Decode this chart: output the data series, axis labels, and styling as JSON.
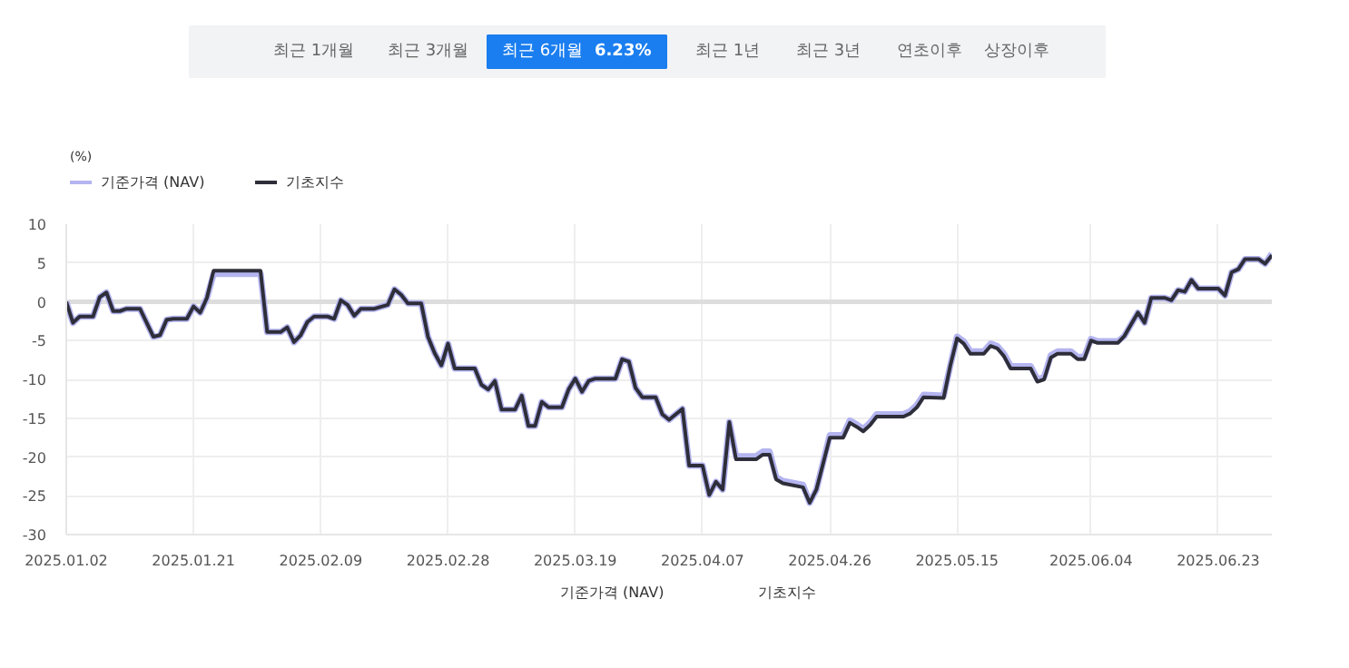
{
  "chart_data": {
    "type": "line",
    "annotations": [
      "최근 1개월",
      "최근 3개월",
      "최근 6개월",
      "6.23%",
      "최근 1년",
      "최근 3년",
      "연초이후",
      "상장이후"
    ],
    "ylabel": "(%)",
    "x": [
      "2025-01-02",
      "2025-01-03",
      "2025-01-04",
      "2025-01-06",
      "2025-01-07",
      "2025-01-08",
      "2025-01-09",
      "2025-01-10",
      "2025-01-11",
      "2025-01-13",
      "2025-01-15",
      "2025-01-16",
      "2025-01-17",
      "2025-01-18",
      "2025-01-20",
      "2025-01-21",
      "2025-01-22",
      "2025-01-23",
      "2025-01-24",
      "2025-01-31",
      "2025-02-01",
      "2025-02-03",
      "2025-02-04",
      "2025-02-05",
      "2025-02-06",
      "2025-02-07",
      "2025-02-08",
      "2025-02-10",
      "2025-02-11",
      "2025-02-12",
      "2025-02-13",
      "2025-02-14",
      "2025-02-15",
      "2025-02-17",
      "2025-02-19",
      "2025-02-20",
      "2025-02-21",
      "2025-02-22",
      "2025-02-24",
      "2025-02-25",
      "2025-02-26",
      "2025-02-27",
      "2025-02-28",
      "2025-03-01",
      "2025-03-04",
      "2025-03-05",
      "2025-03-06",
      "2025-03-07",
      "2025-03-08",
      "2025-03-10",
      "2025-03-11",
      "2025-03-12",
      "2025-03-13",
      "2025-03-14",
      "2025-03-15",
      "2025-03-17",
      "2025-03-18",
      "2025-03-19",
      "2025-03-20",
      "2025-03-21",
      "2025-03-22",
      "2025-03-25",
      "2025-03-26",
      "2025-03-27",
      "2025-03-28",
      "2025-03-29",
      "2025-03-31",
      "2025-04-01",
      "2025-04-02",
      "2025-04-04",
      "2025-04-05",
      "2025-04-07",
      "2025-04-08",
      "2025-04-09",
      "2025-04-10",
      "2025-04-11",
      "2025-04-12",
      "2025-04-15",
      "2025-04-16",
      "2025-04-17",
      "2025-04-18",
      "2025-04-19",
      "2025-04-22",
      "2025-04-23",
      "2025-04-24",
      "2025-04-26",
      "2025-04-28",
      "2025-04-29",
      "2025-04-30",
      "2025-05-01",
      "2025-05-02",
      "2025-05-03",
      "2025-05-07",
      "2025-05-08",
      "2025-05-09",
      "2025-05-10",
      "2025-05-13",
      "2025-05-14",
      "2025-05-15",
      "2025-05-16",
      "2025-05-17",
      "2025-05-19",
      "2025-05-20",
      "2025-05-21",
      "2025-05-22",
      "2025-05-23",
      "2025-05-26",
      "2025-05-27",
      "2025-05-28",
      "2025-05-29",
      "2025-05-30",
      "2025-06-01",
      "2025-06-02",
      "2025-06-03",
      "2025-06-04",
      "2025-06-05",
      "2025-06-08",
      "2025-06-09",
      "2025-06-10",
      "2025-06-11",
      "2025-06-12",
      "2025-06-13",
      "2025-06-15",
      "2025-06-16",
      "2025-06-17",
      "2025-06-18",
      "2025-06-19",
      "2025-06-20",
      "2025-06-23",
      "2025-06-24",
      "2025-06-25",
      "2025-06-26",
      "2025-06-27",
      "2025-06-29",
      "2025-06-30",
      "2025-07-01"
    ],
    "series": [
      {
        "name": "기준가격 (NAV)",
        "color": "#b4b4f0",
        "values": [
          0,
          -2.7,
          -1.9,
          -1.9,
          0.6,
          1.2,
          -1.2,
          -1.2,
          -0.9,
          -0.9,
          -4.5,
          -4.3,
          -2.3,
          -2.2,
          -2.2,
          -0.6,
          -1.4,
          0.5,
          3.6,
          3.6,
          -3.9,
          -3.9,
          -3.3,
          -5.2,
          -4.3,
          -2.6,
          -1.9,
          -1.9,
          -2.2,
          0.2,
          -0.4,
          -1.8,
          -0.9,
          -0.9,
          -0.4,
          1.6,
          0.9,
          -0.2,
          -0.2,
          -4.5,
          -6.6,
          -8.2,
          -5.4,
          -8.6,
          -8.6,
          -10.7,
          -11.3,
          -10.2,
          -13.9,
          -13.9,
          -12.1,
          -16.0,
          -16.0,
          -12.9,
          -13.6,
          -13.6,
          -11.3,
          -9.9,
          -11.6,
          -10.2,
          -9.9,
          -9.9,
          -7.4,
          -7.7,
          -11.1,
          -12.3,
          -12.3,
          -14.5,
          -15.2,
          -13.8,
          -21.1,
          -21.1,
          -24.9,
          -23.2,
          -24.2,
          -15.5,
          -19.9,
          -19.9,
          -19.3,
          -19.3,
          -22.6,
          -23.1,
          -23.6,
          -25.9,
          -24.2,
          -17.2,
          -17.2,
          -15.3,
          -15.8,
          -16.4,
          -15.6,
          -14.5,
          -14.5,
          -14.1,
          -13.3,
          -12.0,
          -12.1,
          -8.2,
          -4.5,
          -5.1,
          -6.4,
          -6.4,
          -5.4,
          -5.7,
          -6.7,
          -8.3,
          -8.3,
          -10.0,
          -9.7,
          -6.9,
          -6.4,
          -6.4,
          -7.1,
          -7.1,
          -4.8,
          -5.1,
          -5.1,
          -4.4,
          -2.9,
          -1.4,
          -2.7,
          0.5,
          0.5,
          0.2,
          1.5,
          1.3,
          2.8,
          1.7,
          1.7,
          0.8,
          3.8,
          4.2,
          5.5,
          5.5,
          4.9,
          6.2
        ]
      },
      {
        "name": "기초지수",
        "color": "#2e2e3a",
        "values": [
          0,
          -2.7,
          -1.9,
          -1.9,
          0.6,
          1.2,
          -1.2,
          -1.2,
          -0.9,
          -0.9,
          -4.5,
          -4.3,
          -2.3,
          -2.2,
          -2.2,
          -0.6,
          -1.4,
          0.5,
          4.0,
          4.0,
          -3.9,
          -3.9,
          -3.3,
          -5.2,
          -4.3,
          -2.6,
          -1.9,
          -1.9,
          -2.2,
          0.2,
          -0.4,
          -1.8,
          -0.9,
          -0.9,
          -0.4,
          1.6,
          0.9,
          -0.2,
          -0.2,
          -4.5,
          -6.6,
          -8.2,
          -5.4,
          -8.6,
          -8.6,
          -10.7,
          -11.3,
          -10.2,
          -13.9,
          -13.9,
          -12.1,
          -16.0,
          -16.0,
          -12.9,
          -13.6,
          -13.6,
          -11.3,
          -9.9,
          -11.6,
          -10.2,
          -9.9,
          -9.9,
          -7.4,
          -7.7,
          -11.1,
          -12.3,
          -12.3,
          -14.5,
          -15.2,
          -13.8,
          -21.1,
          -21.1,
          -24.9,
          -23.2,
          -24.2,
          -15.5,
          -20.3,
          -20.3,
          -19.7,
          -19.7,
          -22.9,
          -23.4,
          -23.9,
          -25.9,
          -24.2,
          -17.5,
          -17.5,
          -15.6,
          -16.1,
          -16.7,
          -15.9,
          -14.8,
          -14.8,
          -14.4,
          -13.6,
          -12.3,
          -12.4,
          -8.2,
          -4.7,
          -5.4,
          -6.7,
          -6.7,
          -5.7,
          -6.0,
          -7.0,
          -8.6,
          -8.6,
          -10.3,
          -10.0,
          -7.2,
          -6.7,
          -6.7,
          -7.4,
          -7.4,
          -5.0,
          -5.3,
          -5.3,
          -4.4,
          -2.9,
          -1.4,
          -2.7,
          0.5,
          0.5,
          0.2,
          1.5,
          1.3,
          2.8,
          1.7,
          1.7,
          0.8,
          3.8,
          4.2,
          5.5,
          5.5,
          4.9,
          6.0
        ]
      }
    ],
    "xlim": [
      "2025-01-02",
      "2025-07-01"
    ],
    "xticks": [
      {
        "value": "2025-01-02",
        "label": "2025.01.02"
      },
      {
        "value": "2025-01-21",
        "label": "2025.01.21"
      },
      {
        "value": "2025-02-09",
        "label": "2025.02.09"
      },
      {
        "value": "2025-02-28",
        "label": "2025.02.28"
      },
      {
        "value": "2025-03-19",
        "label": "2025.03.19"
      },
      {
        "value": "2025-04-07",
        "label": "2025.04.07"
      },
      {
        "value": "2025-04-26",
        "label": "2025.04.26"
      },
      {
        "value": "2025-05-15",
        "label": "2025.05.15"
      },
      {
        "value": "2025-06-04",
        "label": "2025.06.04"
      },
      {
        "value": "2025-06-23",
        "label": "2025.06.23"
      }
    ],
    "ylim": [
      -30,
      10
    ],
    "yticks": [
      -30,
      -25,
      -20,
      -15,
      -10,
      -5,
      0,
      5,
      10
    ],
    "ref_lines": [
      {
        "axis": "y",
        "value": 0,
        "color": "#dddddd"
      }
    ],
    "grid": true,
    "legend": "top left"
  }
}
